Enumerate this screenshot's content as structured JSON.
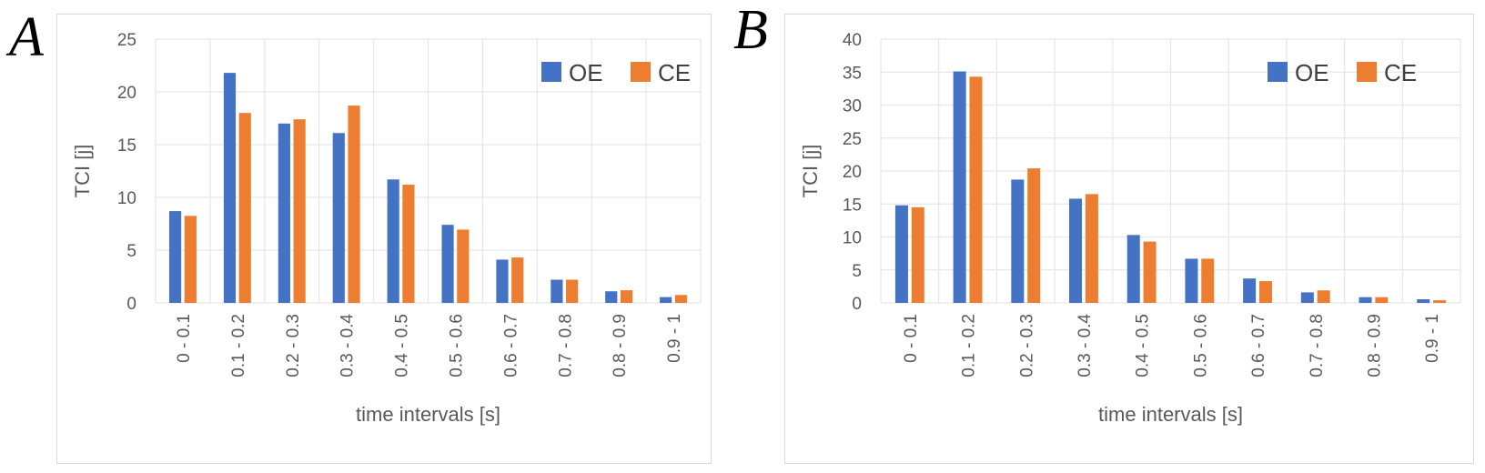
{
  "colors": {
    "OE": "#4472c4",
    "CE": "#ed7d31",
    "grid": "#e6e6e6",
    "text": "#595959"
  },
  "chart_data": [
    {
      "panel": "A",
      "type": "bar",
      "title": "",
      "xlabel": "time intervals [s]",
      "ylabel": "TCI [j]",
      "ylim": [
        0,
        25
      ],
      "yticks": [
        0,
        5,
        10,
        15,
        20,
        25
      ],
      "grid": true,
      "legend": "top-right",
      "categories": [
        "0 - 0.1",
        "0.1 - 0.2",
        "0.2 - 0.3",
        "0.3 - 0.4",
        "0.4 - 0.5",
        "0.5 - 0.6",
        "0.6 - 0.7",
        "0.7 - 0.8",
        "0.8 - 0.9",
        "0.9 - 1"
      ],
      "series": [
        {
          "name": "OE",
          "values": [
            8.7,
            21.8,
            17.0,
            16.1,
            11.7,
            7.4,
            4.1,
            2.2,
            1.1,
            0.55
          ]
        },
        {
          "name": "CE",
          "values": [
            8.25,
            18.0,
            17.4,
            18.7,
            11.2,
            6.95,
            4.3,
            2.2,
            1.2,
            0.75
          ]
        }
      ]
    },
    {
      "panel": "B",
      "type": "bar",
      "title": "",
      "xlabel": "time intervals [s]",
      "ylabel": "TCI [j]",
      "ylim": [
        0,
        40
      ],
      "yticks": [
        0,
        5,
        10,
        15,
        20,
        25,
        30,
        35,
        40
      ],
      "grid": true,
      "legend": "top-right",
      "categories": [
        "0 - 0.1",
        "0.1 - 0.2",
        "0.2 - 0.3",
        "0.3 - 0.4",
        "0.4 - 0.5",
        "0.5 - 0.6",
        "0.6 - 0.7",
        "0.7 - 0.8",
        "0.8 - 0.9",
        "0.9 - 1"
      ],
      "series": [
        {
          "name": "OE",
          "values": [
            14.8,
            35.1,
            18.7,
            15.8,
            10.3,
            6.7,
            3.7,
            1.6,
            0.87,
            0.55
          ]
        },
        {
          "name": "CE",
          "values": [
            14.5,
            34.3,
            20.4,
            16.5,
            9.3,
            6.7,
            3.3,
            1.9,
            0.87,
            0.4
          ]
        }
      ]
    }
  ]
}
